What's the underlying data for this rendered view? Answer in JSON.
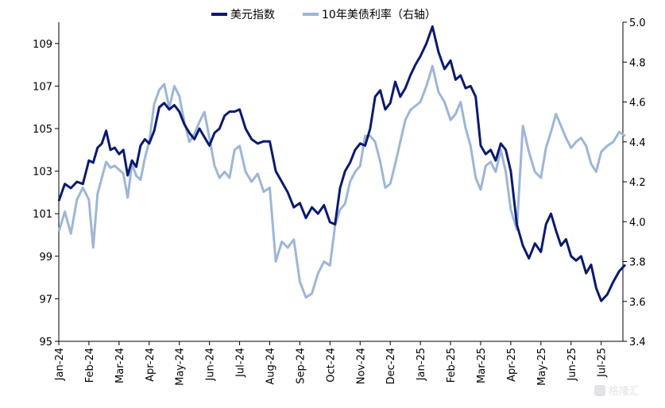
{
  "chart_data": {
    "type": "line",
    "x_range": [
      "2024-01",
      "2025-07"
    ],
    "x_tick_labels": [
      "Jan-24",
      "Feb-24",
      "Mar-24",
      "Apr-24",
      "May-24",
      "Jun-24",
      "Jul-24",
      "Aug-24",
      "Sep-24",
      "Oct-24",
      "Nov-24",
      "Dec-24",
      "Jan-25",
      "Feb-25",
      "Mar-25",
      "Apr-25",
      "May-25",
      "Jun-25",
      "Jul-25"
    ],
    "y_left": {
      "min": 95,
      "max": 110,
      "ticks": [
        95,
        97,
        99,
        101,
        103,
        105,
        107,
        109
      ]
    },
    "y_right": {
      "min": 3.4,
      "max": 5.0,
      "ticks": [
        "3.4",
        "3.6",
        "3.8",
        "4.0",
        "4.2",
        "4.4",
        "4.6",
        "4.8",
        "5.0"
      ]
    },
    "legend_position": "top-center",
    "series": [
      {
        "name": "美元指数",
        "axis": "left",
        "color": "#0a1a6e",
        "points": [
          [
            "2024-01",
            101.6
          ],
          [
            "2024-01",
            102.4
          ],
          [
            "2024-01",
            102.2
          ],
          [
            "2024-01",
            102.5
          ],
          [
            "2024-01",
            102.4
          ],
          [
            "2024-02",
            103.5
          ],
          [
            "2024-02",
            103.4
          ],
          [
            "2024-02",
            104.1
          ],
          [
            "2024-02",
            104.3
          ],
          [
            "2024-02",
            104.9
          ],
          [
            "2024-02",
            104.0
          ],
          [
            "2024-02",
            104.1
          ],
          [
            "2024-03",
            103.8
          ],
          [
            "2024-03",
            104.0
          ],
          [
            "2024-03",
            102.8
          ],
          [
            "2024-03",
            103.5
          ],
          [
            "2024-03",
            103.2
          ],
          [
            "2024-03",
            104.2
          ],
          [
            "2024-03",
            104.5
          ],
          [
            "2024-04",
            104.3
          ],
          [
            "2024-04",
            104.9
          ],
          [
            "2024-04",
            106.0
          ],
          [
            "2024-04",
            106.2
          ],
          [
            "2024-04",
            105.9
          ],
          [
            "2024-04",
            106.1
          ],
          [
            "2024-05",
            105.8
          ],
          [
            "2024-05",
            105.2
          ],
          [
            "2024-05",
            104.8
          ],
          [
            "2024-05",
            104.5
          ],
          [
            "2024-05",
            105.0
          ],
          [
            "2024-05",
            104.6
          ],
          [
            "2024-06",
            104.2
          ],
          [
            "2024-06",
            104.8
          ],
          [
            "2024-06",
            105.0
          ],
          [
            "2024-06",
            105.6
          ],
          [
            "2024-06",
            105.8
          ],
          [
            "2024-06",
            105.8
          ],
          [
            "2024-07",
            105.9
          ],
          [
            "2024-07",
            105.0
          ],
          [
            "2024-07",
            104.5
          ],
          [
            "2024-07",
            104.3
          ],
          [
            "2024-07",
            104.4
          ],
          [
            "2024-08",
            104.4
          ],
          [
            "2024-08",
            103.0
          ],
          [
            "2024-08",
            102.5
          ],
          [
            "2024-08",
            102.0
          ],
          [
            "2024-08",
            101.3
          ],
          [
            "2024-09",
            101.5
          ],
          [
            "2024-09",
            100.8
          ],
          [
            "2024-09",
            101.3
          ],
          [
            "2024-09",
            101.0
          ],
          [
            "2024-09",
            101.4
          ],
          [
            "2024-10",
            100.6
          ],
          [
            "2024-10",
            100.5
          ],
          [
            "2024-10",
            102.2
          ],
          [
            "2024-10",
            103.0
          ],
          [
            "2024-10",
            103.4
          ],
          [
            "2024-10",
            104.0
          ],
          [
            "2024-11",
            104.3
          ],
          [
            "2024-11",
            104.2
          ],
          [
            "2024-11",
            105.0
          ],
          [
            "2024-11",
            106.5
          ],
          [
            "2024-11",
            106.8
          ],
          [
            "2024-11",
            105.9
          ],
          [
            "2024-12",
            106.2
          ],
          [
            "2024-12",
            107.2
          ],
          [
            "2024-12",
            106.5
          ],
          [
            "2024-12",
            106.9
          ],
          [
            "2024-12",
            107.5
          ],
          [
            "2024-12",
            108.0
          ],
          [
            "2025-01",
            108.4
          ],
          [
            "2025-01",
            109.0
          ],
          [
            "2025-01",
            109.8
          ],
          [
            "2025-01",
            108.6
          ],
          [
            "2025-01",
            107.8
          ],
          [
            "2025-02",
            108.2
          ],
          [
            "2025-02",
            107.3
          ],
          [
            "2025-02",
            107.5
          ],
          [
            "2025-02",
            106.9
          ],
          [
            "2025-02",
            107.0
          ],
          [
            "2025-02",
            106.5
          ],
          [
            "2025-03",
            104.2
          ],
          [
            "2025-03",
            103.8
          ],
          [
            "2025-03",
            104.0
          ],
          [
            "2025-03",
            103.5
          ],
          [
            "2025-03",
            104.3
          ],
          [
            "2025-03",
            104.0
          ],
          [
            "2025-04",
            103.0
          ],
          [
            "2025-04",
            100.5
          ],
          [
            "2025-04",
            99.5
          ],
          [
            "2025-04",
            98.9
          ],
          [
            "2025-04",
            99.6
          ],
          [
            "2025-05",
            99.2
          ],
          [
            "2025-05",
            100.5
          ],
          [
            "2025-05",
            101.0
          ],
          [
            "2025-05",
            100.2
          ],
          [
            "2025-05",
            99.5
          ],
          [
            "2025-05",
            99.8
          ],
          [
            "2025-06",
            99.0
          ],
          [
            "2025-06",
            98.8
          ],
          [
            "2025-06",
            99.0
          ],
          [
            "2025-06",
            98.2
          ],
          [
            "2025-06",
            98.6
          ],
          [
            "2025-06",
            97.5
          ],
          [
            "2025-07",
            96.9
          ],
          [
            "2025-07",
            97.2
          ],
          [
            "2025-07",
            97.8
          ],
          [
            "2025-07",
            98.3
          ],
          [
            "2025-07",
            98.6
          ]
        ]
      },
      {
        "name": "10年美债利率（右轴）",
        "axis": "right",
        "color": "#9db6d8",
        "points": [
          [
            "2024-01",
            3.95
          ],
          [
            "2024-01",
            4.05
          ],
          [
            "2024-01",
            3.94
          ],
          [
            "2024-01",
            4.11
          ],
          [
            "2024-01",
            4.17
          ],
          [
            "2024-02",
            4.11
          ],
          [
            "2024-02",
            3.87
          ],
          [
            "2024-02",
            4.14
          ],
          [
            "2024-02",
            4.22
          ],
          [
            "2024-02",
            4.3
          ],
          [
            "2024-02",
            4.27
          ],
          [
            "2024-02",
            4.28
          ],
          [
            "2024-03",
            4.26
          ],
          [
            "2024-03",
            4.24
          ],
          [
            "2024-03",
            4.12
          ],
          [
            "2024-03",
            4.29
          ],
          [
            "2024-03",
            4.23
          ],
          [
            "2024-03",
            4.21
          ],
          [
            "2024-03",
            4.32
          ],
          [
            "2024-04",
            4.4
          ],
          [
            "2024-04",
            4.59
          ],
          [
            "2024-04",
            4.66
          ],
          [
            "2024-04",
            4.69
          ],
          [
            "2024-04",
            4.57
          ],
          [
            "2024-04",
            4.68
          ],
          [
            "2024-05",
            4.63
          ],
          [
            "2024-05",
            4.5
          ],
          [
            "2024-05",
            4.4
          ],
          [
            "2024-05",
            4.44
          ],
          [
            "2024-05",
            4.5
          ],
          [
            "2024-05",
            4.55
          ],
          [
            "2024-06",
            4.42
          ],
          [
            "2024-06",
            4.28
          ],
          [
            "2024-06",
            4.22
          ],
          [
            "2024-06",
            4.25
          ],
          [
            "2024-06",
            4.22
          ],
          [
            "2024-06",
            4.36
          ],
          [
            "2024-07",
            4.38
          ],
          [
            "2024-07",
            4.25
          ],
          [
            "2024-07",
            4.2
          ],
          [
            "2024-07",
            4.24
          ],
          [
            "2024-07",
            4.15
          ],
          [
            "2024-08",
            4.17
          ],
          [
            "2024-08",
            3.8
          ],
          [
            "2024-08",
            3.9
          ],
          [
            "2024-08",
            3.87
          ],
          [
            "2024-08",
            3.91
          ],
          [
            "2024-09",
            3.7
          ],
          [
            "2024-09",
            3.62
          ],
          [
            "2024-09",
            3.64
          ],
          [
            "2024-09",
            3.74
          ],
          [
            "2024-09",
            3.8
          ],
          [
            "2024-10",
            3.78
          ],
          [
            "2024-10",
            3.98
          ],
          [
            "2024-10",
            4.06
          ],
          [
            "2024-10",
            4.09
          ],
          [
            "2024-10",
            4.2
          ],
          [
            "2024-10",
            4.25
          ],
          [
            "2024-11",
            4.28
          ],
          [
            "2024-11",
            4.43
          ],
          [
            "2024-11",
            4.43
          ],
          [
            "2024-11",
            4.4
          ],
          [
            "2024-11",
            4.3
          ],
          [
            "2024-11",
            4.17
          ],
          [
            "2024-12",
            4.19
          ],
          [
            "2024-12",
            4.29
          ],
          [
            "2024-12",
            4.4
          ],
          [
            "2024-12",
            4.51
          ],
          [
            "2024-12",
            4.56
          ],
          [
            "2024-12",
            4.58
          ],
          [
            "2025-01",
            4.6
          ],
          [
            "2025-01",
            4.68
          ],
          [
            "2025-01",
            4.78
          ],
          [
            "2025-01",
            4.65
          ],
          [
            "2025-01",
            4.6
          ],
          [
            "2025-02",
            4.51
          ],
          [
            "2025-02",
            4.54
          ],
          [
            "2025-02",
            4.6
          ],
          [
            "2025-02",
            4.47
          ],
          [
            "2025-02",
            4.38
          ],
          [
            "2025-02",
            4.22
          ],
          [
            "2025-03",
            4.16
          ],
          [
            "2025-03",
            4.28
          ],
          [
            "2025-03",
            4.3
          ],
          [
            "2025-03",
            4.25
          ],
          [
            "2025-03",
            4.36
          ],
          [
            "2025-03",
            4.25
          ],
          [
            "2025-04",
            4.06
          ],
          [
            "2025-04",
            3.96
          ],
          [
            "2025-04",
            4.48
          ],
          [
            "2025-04",
            4.35
          ],
          [
            "2025-04",
            4.25
          ],
          [
            "2025-05",
            4.22
          ],
          [
            "2025-05",
            4.37
          ],
          [
            "2025-05",
            4.45
          ],
          [
            "2025-05",
            4.54
          ],
          [
            "2025-05",
            4.48
          ],
          [
            "2025-05",
            4.42
          ],
          [
            "2025-06",
            4.37
          ],
          [
            "2025-06",
            4.4
          ],
          [
            "2025-06",
            4.42
          ],
          [
            "2025-06",
            4.38
          ],
          [
            "2025-06",
            4.29
          ],
          [
            "2025-06",
            4.25
          ],
          [
            "2025-07",
            4.35
          ],
          [
            "2025-07",
            4.38
          ],
          [
            "2025-07",
            4.4
          ],
          [
            "2025-07",
            4.45
          ],
          [
            "2025-07",
            4.43
          ]
        ]
      }
    ]
  }
}
